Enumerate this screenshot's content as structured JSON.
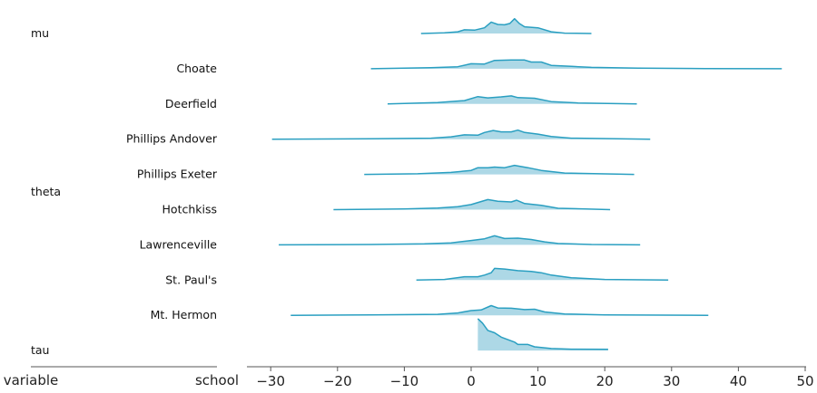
{
  "chart_data": {
    "type": "ridgeline",
    "title": "",
    "xlabel": "",
    "xlim": [
      -33,
      50
    ],
    "xticks": [
      -30,
      -20,
      -10,
      0,
      10,
      20,
      30,
      40,
      50
    ],
    "xtick_labels": [
      "−30",
      "−20",
      "−10",
      "0",
      "10",
      "20",
      "30",
      "40",
      "50"
    ],
    "left_axis_labels": {
      "left": "variable",
      "right": "school"
    },
    "groups": [
      {
        "label": "mu",
        "rows": [
          0
        ]
      },
      {
        "label": "theta",
        "rows": [
          1,
          2,
          3,
          4,
          5,
          6,
          7,
          8
        ]
      },
      {
        "label": "tau",
        "rows": [
          9
        ]
      }
    ],
    "fill_color": "#add8e6",
    "line_color": "#2a9fc1",
    "rows": [
      {
        "variable": "mu",
        "school": "",
        "density": [
          [
            -7.5,
            0.005
          ],
          [
            -4,
            0.02
          ],
          [
            -2,
            0.05
          ],
          [
            -1,
            0.11
          ],
          [
            0.5,
            0.1
          ],
          [
            2,
            0.17
          ],
          [
            3,
            0.34
          ],
          [
            4,
            0.27
          ],
          [
            5,
            0.26
          ],
          [
            5.8,
            0.3
          ],
          [
            6.5,
            0.44
          ],
          [
            7.2,
            0.3
          ],
          [
            8,
            0.2
          ],
          [
            10,
            0.17
          ],
          [
            12,
            0.05
          ],
          [
            14,
            0.01
          ],
          [
            18,
            0.005
          ]
        ]
      },
      {
        "variable": "theta",
        "school": "Choate",
        "density": [
          [
            -15,
            0.003
          ],
          [
            -6,
            0.03
          ],
          [
            -2,
            0.06
          ],
          [
            0,
            0.15
          ],
          [
            2,
            0.14
          ],
          [
            3.5,
            0.25
          ],
          [
            6,
            0.26
          ],
          [
            8,
            0.26
          ],
          [
            9,
            0.2
          ],
          [
            10.5,
            0.2
          ],
          [
            12,
            0.1
          ],
          [
            15,
            0.07
          ],
          [
            18,
            0.04
          ],
          [
            25,
            0.02
          ],
          [
            35,
            0.005
          ],
          [
            46.5,
            0.003
          ]
        ]
      },
      {
        "variable": "theta",
        "school": "Deerfield",
        "density": [
          [
            -12.5,
            0.003
          ],
          [
            -5,
            0.04
          ],
          [
            -1,
            0.1
          ],
          [
            1,
            0.22
          ],
          [
            2.5,
            0.18
          ],
          [
            4.5,
            0.21
          ],
          [
            6,
            0.24
          ],
          [
            7,
            0.19
          ],
          [
            9.5,
            0.17
          ],
          [
            12,
            0.07
          ],
          [
            16,
            0.03
          ],
          [
            24.8,
            0.003
          ]
        ]
      },
      {
        "variable": "theta",
        "school": "Phillips Andover",
        "density": [
          [
            -29.8,
            0.003
          ],
          [
            -15,
            0.01
          ],
          [
            -6,
            0.03
          ],
          [
            -3,
            0.07
          ],
          [
            -1,
            0.13
          ],
          [
            1,
            0.12
          ],
          [
            2,
            0.2
          ],
          [
            3.3,
            0.26
          ],
          [
            4.5,
            0.22
          ],
          [
            6,
            0.22
          ],
          [
            7,
            0.27
          ],
          [
            8,
            0.2
          ],
          [
            10,
            0.15
          ],
          [
            12,
            0.08
          ],
          [
            15,
            0.03
          ],
          [
            26.8,
            0.003
          ]
        ]
      },
      {
        "variable": "theta",
        "school": "Phillips Exeter",
        "density": [
          [
            -16,
            0.003
          ],
          [
            -8,
            0.02
          ],
          [
            -3,
            0.06
          ],
          [
            0,
            0.12
          ],
          [
            1,
            0.2
          ],
          [
            2.5,
            0.2
          ],
          [
            3.5,
            0.22
          ],
          [
            5,
            0.2
          ],
          [
            6.5,
            0.27
          ],
          [
            8.5,
            0.2
          ],
          [
            10.5,
            0.12
          ],
          [
            14,
            0.04
          ],
          [
            24.4,
            0.003
          ]
        ]
      },
      {
        "variable": "theta",
        "school": "Hotchkiss",
        "density": [
          [
            -20.6,
            0.003
          ],
          [
            -10,
            0.02
          ],
          [
            -5,
            0.05
          ],
          [
            -2,
            0.09
          ],
          [
            0,
            0.15
          ],
          [
            2.5,
            0.3
          ],
          [
            4,
            0.25
          ],
          [
            6,
            0.23
          ],
          [
            6.8,
            0.28
          ],
          [
            8,
            0.18
          ],
          [
            10.5,
            0.13
          ],
          [
            13,
            0.04
          ],
          [
            20.8,
            0.003
          ]
        ]
      },
      {
        "variable": "theta",
        "school": "Lawrenceville",
        "density": [
          [
            -28.8,
            0.003
          ],
          [
            -15,
            0.01
          ],
          [
            -7,
            0.03
          ],
          [
            -3,
            0.06
          ],
          [
            0,
            0.13
          ],
          [
            2,
            0.18
          ],
          [
            3.5,
            0.27
          ],
          [
            5,
            0.19
          ],
          [
            7,
            0.2
          ],
          [
            9,
            0.16
          ],
          [
            11,
            0.09
          ],
          [
            13,
            0.04
          ],
          [
            18,
            0.01
          ],
          [
            25.3,
            0.003
          ]
        ]
      },
      {
        "variable": "theta",
        "school": "St. Paul's",
        "density": [
          [
            -8.2,
            0.003
          ],
          [
            -4,
            0.02
          ],
          [
            -1,
            0.1
          ],
          [
            1,
            0.1
          ],
          [
            2,
            0.15
          ],
          [
            3,
            0.22
          ],
          [
            3.5,
            0.35
          ],
          [
            5,
            0.33
          ],
          [
            7,
            0.28
          ],
          [
            9,
            0.26
          ],
          [
            10.5,
            0.22
          ],
          [
            12,
            0.15
          ],
          [
            15,
            0.07
          ],
          [
            20,
            0.02
          ],
          [
            29.5,
            0.003
          ]
        ]
      },
      {
        "variable": "theta",
        "school": "Mt. Hermon",
        "density": [
          [
            -27,
            0.003
          ],
          [
            -15,
            0.01
          ],
          [
            -5,
            0.03
          ],
          [
            -2,
            0.07
          ],
          [
            0,
            0.14
          ],
          [
            1.5,
            0.16
          ],
          [
            3,
            0.29
          ],
          [
            4,
            0.22
          ],
          [
            6,
            0.21
          ],
          [
            8,
            0.17
          ],
          [
            9.5,
            0.18
          ],
          [
            11,
            0.1
          ],
          [
            14,
            0.04
          ],
          [
            20,
            0.01
          ],
          [
            35.5,
            0.003
          ]
        ]
      },
      {
        "variable": "tau",
        "school": "",
        "density": [
          [
            1,
            0.95
          ],
          [
            1.7,
            0.82
          ],
          [
            2.5,
            0.6
          ],
          [
            3.5,
            0.53
          ],
          [
            4.5,
            0.4
          ],
          [
            6.5,
            0.25
          ],
          [
            7,
            0.18
          ],
          [
            8.5,
            0.18
          ],
          [
            9.5,
            0.11
          ],
          [
            12,
            0.06
          ],
          [
            15,
            0.04
          ],
          [
            20.5,
            0.035
          ]
        ]
      }
    ]
  }
}
